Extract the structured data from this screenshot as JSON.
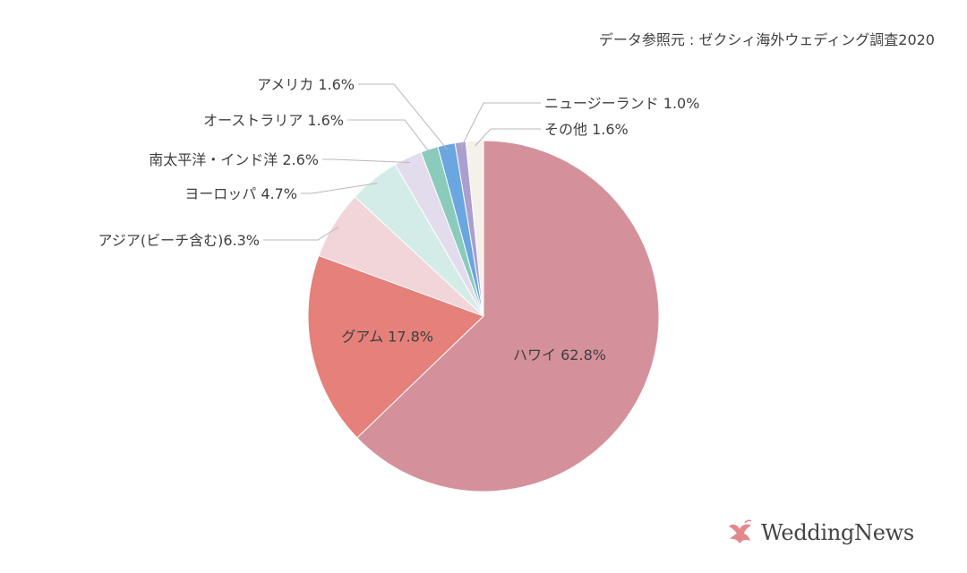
{
  "source": "データ参照元 : ゼクシィ海外ウェディング調査2020",
  "brand": {
    "name": "WeddingNews",
    "color": "#e4888b"
  },
  "chart_data": {
    "type": "pie",
    "title": "",
    "slices": [
      {
        "label": "ハワイ",
        "value": 62.8,
        "display": "ハワイ 62.8%",
        "color": "#d4919b"
      },
      {
        "label": "グアム",
        "value": 17.8,
        "display": "グアム 17.8%",
        "color": "#e5807a"
      },
      {
        "label": "アジア(ビーチ含む)",
        "value": 6.3,
        "display": "アジア(ビーチ含む)6.3%",
        "color": "#f1d5d8"
      },
      {
        "label": "ヨーロッパ",
        "value": 4.7,
        "display": "ヨーロッパ 4.7%",
        "color": "#d4ece8"
      },
      {
        "label": "南太平洋・インド洋",
        "value": 2.6,
        "display": "南太平洋・インド洋 2.6%",
        "color": "#e2dced"
      },
      {
        "label": "オーストラリア",
        "value": 1.6,
        "display": "オーストラリア 1.6%",
        "color": "#8acbbc"
      },
      {
        "label": "アメリカ",
        "value": 1.6,
        "display": "アメリカ 1.6%",
        "color": "#6aa6e0"
      },
      {
        "label": "ニュージーランド",
        "value": 1.0,
        "display": "ニュージーランド 1.0%",
        "color": "#ab9fd0"
      },
      {
        "label": "その他",
        "value": 1.6,
        "display": "その他 1.6%",
        "color": "#f5f0ea"
      }
    ]
  }
}
